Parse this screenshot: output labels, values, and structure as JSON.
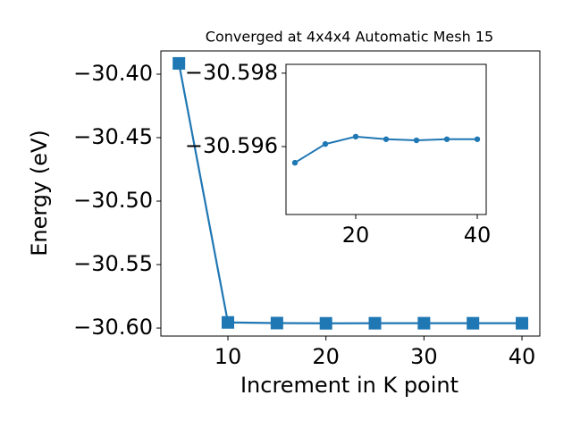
{
  "chart_data": [
    {
      "type": "line",
      "title": "Converged at 4x4x4 Automatic Mesh 15",
      "xlabel": "Increment in K point",
      "ylabel": "Energy (eV)",
      "marker": "square",
      "x": [
        5,
        10,
        15,
        20,
        25,
        30,
        35,
        40
      ],
      "series": [
        {
          "color": "#1f77b4",
          "values": [
            -30.3915,
            -30.59556,
            -30.59607,
            -30.59627,
            -30.5962,
            -30.59617,
            -30.5962,
            -30.5962
          ]
        }
      ],
      "xlim": [
        3.16,
        41.82
      ],
      "xticks": [
        10,
        20,
        30,
        40
      ],
      "ylim": [
        -30.6063,
        -30.3817
      ],
      "yticks": [
        {
          "value": -30.6,
          "label": "−30.60"
        },
        {
          "value": -30.55,
          "label": "−30.55"
        },
        {
          "value": -30.5,
          "label": "−30.50"
        },
        {
          "value": -30.45,
          "label": "−30.45"
        },
        {
          "value": -30.4,
          "label": "−30.40"
        }
      ]
    },
    {
      "type": "line",
      "marker": "circle",
      "x": [
        10,
        15,
        20,
        25,
        30,
        35,
        40
      ],
      "series": [
        {
          "color": "#1f77b4",
          "values": [
            -30.59556,
            -30.59607,
            -30.59627,
            -30.5962,
            -30.59617,
            -30.5962,
            -30.5962
          ]
        }
      ],
      "xlim": [
        8.53,
        41.47
      ],
      "xticks": [
        20,
        40
      ],
      "ylim": [
        -30.59415,
        -30.59824
      ],
      "yticks": [
        {
          "value": -30.598,
          "label": "−30.598"
        },
        {
          "value": -30.596,
          "label": "−30.596"
        }
      ]
    }
  ]
}
